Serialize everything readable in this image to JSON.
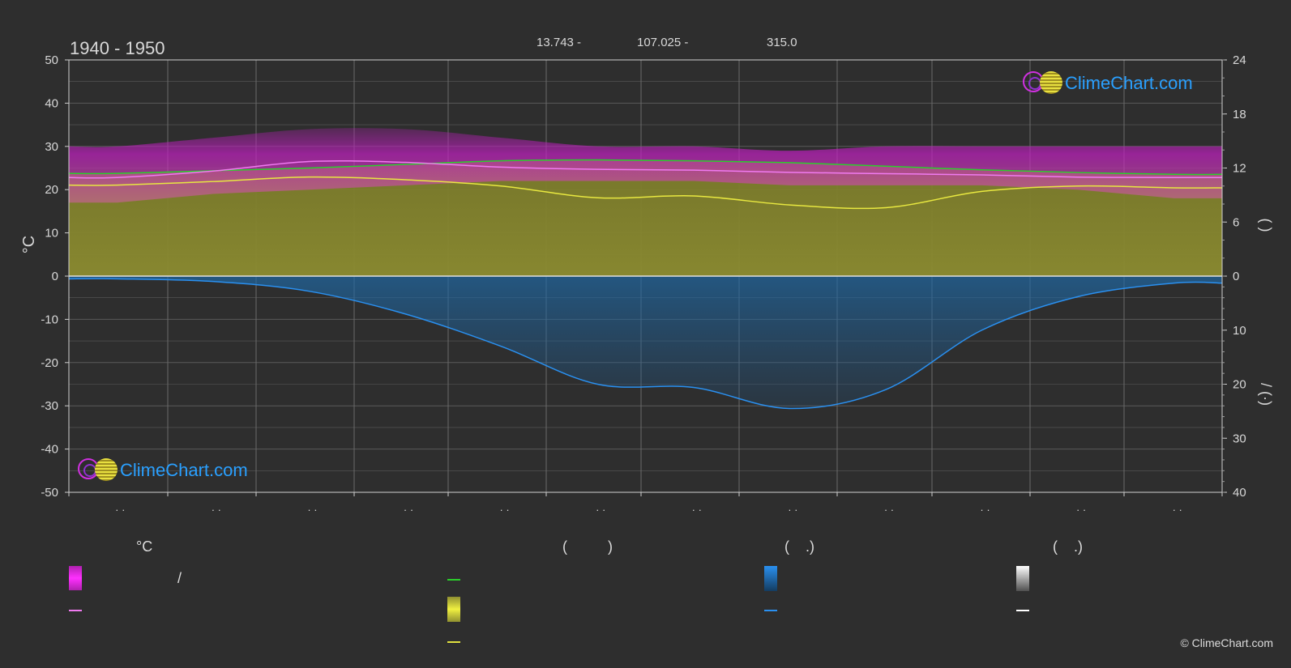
{
  "header": {
    "period": "1940 - 1950",
    "stat1": "13.743 -",
    "stat2": "107.025 -",
    "stat3": "315.0"
  },
  "colors": {
    "background": "#2e2e2e",
    "temp_range": "#cc22cc",
    "daylight_max": "#2bcf2b",
    "sunshine": "#e0e040",
    "precipitation": "#2a7fd4",
    "snow": "#ffffff",
    "avg_temp": "#f07af0"
  },
  "chart_data": {
    "type": "area",
    "x": [
      1,
      2,
      3,
      4,
      5,
      6,
      7,
      8,
      9,
      10,
      11,
      12
    ],
    "x_tick_labels": [
      "· ·",
      "· ·",
      "· ·",
      "· ·",
      "· ·",
      "· ·",
      "· ·",
      "· ·",
      "· ·",
      "· ·",
      "· ·",
      "· ·"
    ],
    "ylabel_left": "°C",
    "ylim_left": [
      -50,
      50
    ],
    "yticks_left": [
      50,
      40,
      30,
      20,
      10,
      0,
      -10,
      -20,
      -30,
      -40,
      -50
    ],
    "ylabel_right_upper": "(  )",
    "ylim_right_upper": [
      0,
      24
    ],
    "yticks_right_upper": [
      24,
      18,
      12,
      6,
      0
    ],
    "ylabel_right_lower": "/  (·)",
    "ylim_right_lower": [
      0,
      40
    ],
    "yticks_right_lower": [
      0,
      10,
      20,
      30,
      40
    ],
    "grid": true,
    "series": [
      {
        "key": "max_temp",
        "values": [
          30,
          32,
          34,
          34,
          32,
          30,
          30,
          29,
          30,
          30,
          30,
          30
        ]
      },
      {
        "key": "min_temp",
        "values": [
          17,
          19,
          20,
          21,
          22,
          22,
          22,
          21,
          21,
          21,
          20,
          18
        ]
      },
      {
        "key": "avg_temp",
        "values": [
          22.8,
          24.3,
          26.5,
          26.3,
          25.2,
          24.7,
          24.5,
          24.0,
          23.7,
          23.4,
          22.9,
          22.8
        ]
      },
      {
        "key": "daylight_hours",
        "values": [
          11.4,
          11.7,
          12.0,
          12.4,
          12.8,
          12.9,
          12.8,
          12.6,
          12.2,
          11.8,
          11.5,
          11.3
        ]
      },
      {
        "key": "sunshine_hours",
        "values": [
          10.1,
          10.5,
          11.0,
          10.7,
          10.0,
          8.7,
          8.9,
          7.9,
          7.6,
          9.4,
          10.0,
          9.8
        ]
      },
      {
        "key": "precipitation_mm",
        "values": [
          0.5,
          1.0,
          2.8,
          7.0,
          13.0,
          20.0,
          20.6,
          24.5,
          21.0,
          10.0,
          3.8,
          1.3
        ]
      }
    ]
  },
  "legend": {
    "col1_title": "°C",
    "col1_item1_sep": "/",
    "col2_title": "(          )",
    "col3_title": "(    .)",
    "col4_title": "(    .)"
  },
  "logo": {
    "text": "ClimeChart.com"
  },
  "copyright": "© ClimeChart.com"
}
